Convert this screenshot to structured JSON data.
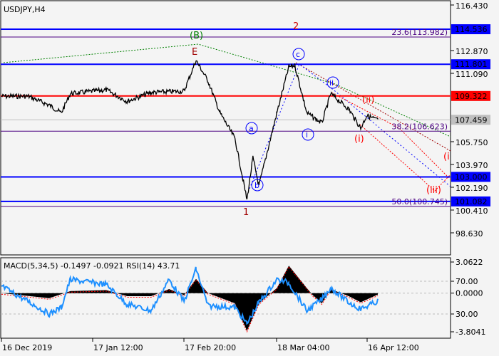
{
  "chart_data": {
    "type": "line",
    "title": "USDJPY,H4",
    "price_axis": {
      "ticks": [
        "116.430",
        "112.870",
        "111.090",
        "105.750",
        "103.970",
        "102.190",
        "100.410",
        "98.630"
      ],
      "range": [
        98.63,
        116.43
      ]
    },
    "time_axis": {
      "ticks": [
        "16 Dec 2019",
        "17 Jan 12:00",
        "17 Feb 20:00",
        "18 Mar 04:00",
        "16 Apr 12:00"
      ]
    },
    "price_path": [
      [
        "2019-12-16",
        109.3
      ],
      [
        "2019-12-25",
        109.3
      ],
      [
        "2020-01-01",
        108.6
      ],
      [
        "2020-01-05",
        108.0
      ],
      [
        "2020-01-08",
        109.5
      ],
      [
        "2020-01-20",
        109.8
      ],
      [
        "2020-01-27",
        108.9
      ],
      [
        "2020-02-04",
        109.6
      ],
      [
        "2020-02-15",
        109.7
      ],
      [
        "2020-02-19",
        112.1
      ],
      [
        "2020-02-23",
        110.5
      ],
      [
        "2020-02-27",
        108.0
      ],
      [
        "2020-03-03",
        106.0
      ],
      [
        "2020-03-07",
        101.2
      ],
      [
        "2020-03-09",
        104.5
      ],
      [
        "2020-03-11",
        102.3
      ],
      [
        "2020-03-17",
        108.0
      ],
      [
        "2020-03-21",
        111.6
      ],
      [
        "2020-03-23",
        111.7
      ],
      [
        "2020-03-27",
        108.0
      ],
      [
        "2020-04-01",
        107.2
      ],
      [
        "2020-04-04",
        109.5
      ],
      [
        "2020-04-10",
        108.3
      ],
      [
        "2020-04-14",
        106.8
      ],
      [
        "2020-04-16",
        107.8
      ],
      [
        "2020-04-20",
        107.4
      ]
    ],
    "levels": [
      {
        "value": 114.536,
        "label": "114.536",
        "color": "#0000ff"
      },
      {
        "value": 111.801,
        "label": "111.801",
        "color": "#0000ff"
      },
      {
        "value": 109.322,
        "label": "109.322",
        "color": "#ff0000"
      },
      {
        "value": 107.459,
        "label": "107.459",
        "color": "#c0c0c0"
      },
      {
        "value": 103.0,
        "label": "103.000",
        "color": "#0000ff"
      },
      {
        "value": 101.082,
        "label": "101.082",
        "color": "#0000ff"
      }
    ],
    "fib_levels": [
      {
        "value": 113.982,
        "label": "23.6(113.982)"
      },
      {
        "value": 106.623,
        "label": "38.2(106.623)"
      },
      {
        "value": 100.745,
        "label": "50.0(100.745)"
      }
    ],
    "wave_labels": [
      "(B)",
      "E",
      "2",
      "c",
      "ii",
      "(ii)",
      "a",
      "i",
      "(i)",
      "b",
      "1",
      "(i",
      "(iii)"
    ],
    "indicator": {
      "label": "MACD(5,34,5) -0.1497 -0.0921 RSI(14) 43.71",
      "ticks": [
        "3.0622",
        "70.00",
        "0.0000",
        "30.00",
        "-3.8041"
      ],
      "macd_range": [
        -3.8041,
        3.0622
      ],
      "macd_path": [
        [
          "2019-12-16",
          0
        ],
        [
          "2020-01-01",
          -0.5
        ],
        [
          "2020-01-08",
          0.2
        ],
        [
          "2020-01-20",
          0.3
        ],
        [
          "2020-01-27",
          -0.3
        ],
        [
          "2020-02-04",
          -0.3
        ],
        [
          "2020-02-10",
          0.4
        ],
        [
          "2020-02-15",
          -0.2
        ],
        [
          "2020-02-19",
          1.4
        ],
        [
          "2020-02-23",
          0
        ],
        [
          "2020-03-03",
          -1
        ],
        [
          "2020-03-07",
          -3.7
        ],
        [
          "2020-03-11",
          -1
        ],
        [
          "2020-03-17",
          0.5
        ],
        [
          "2020-03-21",
          2.7
        ],
        [
          "2020-03-27",
          0.5
        ],
        [
          "2020-03-29",
          -0.2
        ],
        [
          "2020-04-01",
          -1.0
        ],
        [
          "2020-04-04",
          0.4
        ],
        [
          "2020-04-10",
          -0.3
        ],
        [
          "2020-04-14",
          -0.9
        ],
        [
          "2020-04-20",
          -0.1
        ]
      ],
      "rsi_path": [
        [
          "2019-12-16",
          64
        ],
        [
          "2019-12-25",
          45
        ],
        [
          "2020-01-01",
          30
        ],
        [
          "2020-01-05",
          38
        ],
        [
          "2020-01-08",
          72
        ],
        [
          "2020-01-20",
          66
        ],
        [
          "2020-01-27",
          42
        ],
        [
          "2020-02-04",
          34
        ],
        [
          "2020-02-10",
          72
        ],
        [
          "2020-02-15",
          45
        ],
        [
          "2020-02-19",
          85
        ],
        [
          "2020-02-23",
          40
        ],
        [
          "2020-03-03",
          38
        ],
        [
          "2020-03-07",
          18
        ],
        [
          "2020-03-11",
          44
        ],
        [
          "2020-03-17",
          72
        ],
        [
          "2020-03-21",
          68
        ],
        [
          "2020-03-27",
          34
        ],
        [
          "2020-04-01",
          48
        ],
        [
          "2020-04-04",
          62
        ],
        [
          "2020-04-10",
          44
        ],
        [
          "2020-04-14",
          36
        ],
        [
          "2020-04-20",
          46
        ]
      ]
    },
    "colors": {
      "background": "#f4f4f4",
      "price": "#000000",
      "rsi": "#1e90ff",
      "macd_signal": "#ff0000",
      "fib": "#4b0082"
    }
  }
}
